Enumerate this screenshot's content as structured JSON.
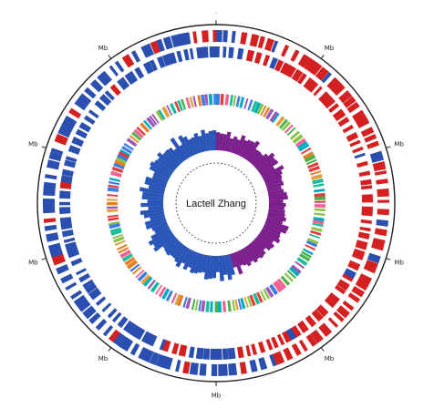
{
  "map": {
    "center_label": "Lactell Zhang",
    "tick_labels": [
      ".",
      "Mb",
      "Mb",
      "Mb",
      "Mb",
      "Mb",
      "Mb",
      "Mb",
      "Mb",
      "Mb"
    ],
    "colors": {
      "outer_ring": "#222222",
      "forward_genes": "#d42020",
      "reverse_genes": "#2a4fb0",
      "gc_skew_positive": "#7a1f8c",
      "gc_skew_negative": "#2a55b8",
      "cog_palette": [
        "#e33b3b",
        "#3b7be3",
        "#4ab04a",
        "#e3a13b",
        "#9b59b6",
        "#1abc9c",
        "#e67e22",
        "#f06292",
        "#8bc34a",
        "#00acc1"
      ]
    }
  }
}
